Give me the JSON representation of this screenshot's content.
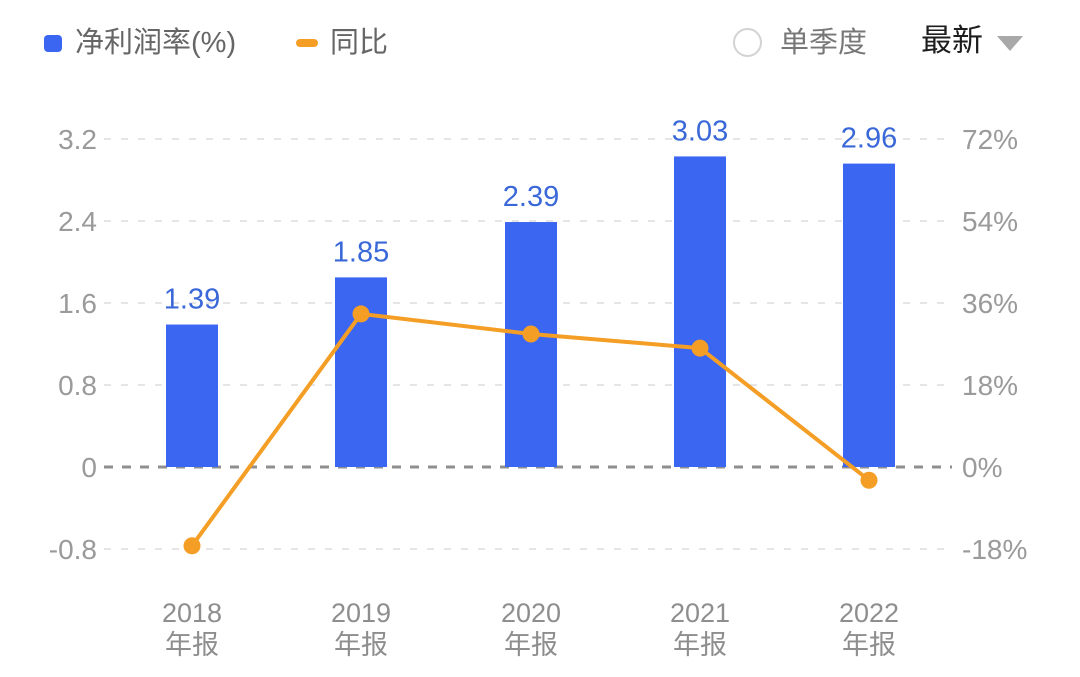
{
  "legend": {
    "bar_label": "净利润率(%)",
    "line_label": "同比"
  },
  "controls": {
    "radio_label": "单季度",
    "dropdown_label": "最新"
  },
  "colors": {
    "bar": "#3B66F1",
    "bar_value_label": "#3A68D8",
    "line": "#F49E25",
    "axis_tick": "#9A9A9A",
    "x_label": "#8E8E8E",
    "grid_line": "#E5E5E5",
    "zero_line": "#8F8F8F",
    "legend_text": "#666666",
    "background": "#FFFFFF"
  },
  "chart_data": {
    "type": "bar",
    "subtype": "bar-line-combo",
    "title": "",
    "legend_position": "top-left",
    "grid": "dashed-horizontal",
    "categories": [
      {
        "year": "2018",
        "period": "年报"
      },
      {
        "year": "2019",
        "period": "年报"
      },
      {
        "year": "2020",
        "period": "年报"
      },
      {
        "year": "2021",
        "period": "年报"
      },
      {
        "year": "2022",
        "period": "年报"
      }
    ],
    "series": [
      {
        "name": "净利润率(%)",
        "type": "bar",
        "axis": "left",
        "values": [
          1.39,
          1.85,
          2.39,
          3.03,
          2.96
        ],
        "labels": [
          "1.39",
          "1.85",
          "2.39",
          "3.03",
          "2.96"
        ]
      },
      {
        "name": "同比",
        "type": "line",
        "axis": "right",
        "unit": "%",
        "values": [
          -17.3,
          33.6,
          29.2,
          26.1,
          -2.9
        ]
      }
    ],
    "left_axis": {
      "max": 3.2,
      "min": -0.8,
      "step": 0.8,
      "ticks": [
        "3.2",
        "2.4",
        "1.6",
        "0.8",
        "0",
        "-0.8"
      ]
    },
    "right_axis": {
      "max": 72,
      "min": -18,
      "step": 18,
      "ticks": [
        "72%",
        "54%",
        "36%",
        "18%",
        "0%",
        "-18%"
      ]
    }
  }
}
